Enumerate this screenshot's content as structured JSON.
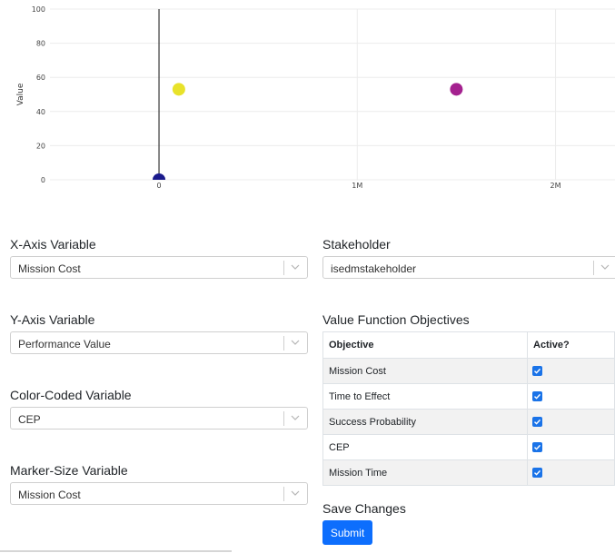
{
  "chart_data": {
    "type": "scatter",
    "ylabel": "Value",
    "xlabel": "",
    "xlim": [
      -550000,
      2300000
    ],
    "ylim": [
      0,
      100
    ],
    "xticks": [
      {
        "value": 0,
        "label": "0"
      },
      {
        "value": 1000000,
        "label": "1M"
      },
      {
        "value": 2000000,
        "label": "2M"
      }
    ],
    "yticks": [
      0,
      20,
      40,
      60,
      80,
      100
    ],
    "grid": true,
    "points": [
      {
        "x": 100000,
        "y": 53,
        "color": "#e8e22a"
      },
      {
        "x": 1500000,
        "y": 53,
        "color": "#a4218f"
      },
      {
        "x": 0,
        "y": 0,
        "color": "#1a1a8c"
      }
    ],
    "vline_x": 0
  },
  "controls": {
    "x_axis": {
      "label": "X-Axis Variable",
      "value": "Mission Cost"
    },
    "y_axis": {
      "label": "Y-Axis Variable",
      "value": "Performance Value"
    },
    "color": {
      "label": "Color-Coded Variable",
      "value": "CEP"
    },
    "marker_size": {
      "label": "Marker-Size Variable",
      "value": "Mission Cost"
    },
    "stakeholder": {
      "label": "Stakeholder",
      "value": "isedmstakeholder"
    }
  },
  "objectives": {
    "title": "Value Function Objectives",
    "headers": [
      "Objective",
      "Active?"
    ],
    "rows": [
      {
        "name": "Mission Cost",
        "active": true
      },
      {
        "name": "Time to Effect",
        "active": true
      },
      {
        "name": "Success Probability",
        "active": true
      },
      {
        "name": "CEP",
        "active": true
      },
      {
        "name": "Mission Time",
        "active": true
      }
    ]
  },
  "save": {
    "label": "Save Changes",
    "button": "Submit"
  },
  "colors": {
    "accent": "#0d6efd",
    "checkbox": "#1a73e8"
  }
}
